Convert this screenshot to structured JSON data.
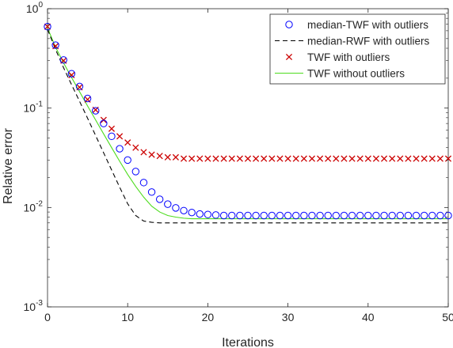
{
  "chart_data": {
    "type": "line",
    "xlabel": "Iterations",
    "ylabel": "Relative error",
    "xlim": [
      0,
      50
    ],
    "ylim": [
      0.001,
      1
    ],
    "yscale": "log",
    "grid": false,
    "legend_position": "top-right",
    "x_ticks": [
      "0",
      "10",
      "20",
      "30",
      "40",
      "50"
    ],
    "y_ticks": [
      {
        "base": "10",
        "exp": "0"
      },
      {
        "base": "10",
        "exp": "-1"
      },
      {
        "base": "10",
        "exp": "-2"
      },
      {
        "base": "10",
        "exp": "-3"
      }
    ],
    "series": [
      {
        "name": "median-TWF with outliers",
        "style": "circle",
        "color": "#0000ff",
        "x": [
          0,
          1,
          2,
          3,
          4,
          5,
          6,
          7,
          8,
          9,
          10,
          11,
          12,
          13,
          14,
          15,
          16,
          17,
          18,
          19,
          20,
          21,
          22,
          23,
          24,
          25,
          26,
          27,
          28,
          29,
          30,
          31,
          32,
          33,
          34,
          35,
          36,
          37,
          38,
          39,
          40,
          41,
          42,
          43,
          44,
          45,
          46,
          47,
          48,
          49,
          50
        ],
        "y": [
          0.66,
          0.43,
          0.305,
          0.222,
          0.165,
          0.125,
          0.094,
          0.07,
          0.052,
          0.039,
          0.03,
          0.023,
          0.0178,
          0.0143,
          0.0121,
          0.0108,
          0.0099,
          0.0093,
          0.0089,
          0.0086,
          0.0085,
          0.0084,
          0.0083,
          0.0083,
          0.0083,
          0.0083,
          0.0083,
          0.0083,
          0.0083,
          0.0083,
          0.0083,
          0.0083,
          0.0083,
          0.0083,
          0.0083,
          0.0083,
          0.0083,
          0.0083,
          0.0083,
          0.0083,
          0.0083,
          0.0083,
          0.0083,
          0.0083,
          0.0083,
          0.0083,
          0.0083,
          0.0083,
          0.0083,
          0.0083,
          0.0083
        ]
      },
      {
        "name": "median-RWF with outliers",
        "style": "dashed",
        "color": "#000000",
        "x": [
          0,
          1,
          2,
          3,
          4,
          5,
          6,
          7,
          8,
          9,
          10,
          11,
          12,
          13,
          14,
          15,
          16,
          17,
          18,
          19,
          20,
          25,
          30,
          35,
          40,
          45,
          50
        ],
        "y": [
          0.62,
          0.39,
          0.255,
          0.172,
          0.117,
          0.079,
          0.053,
          0.0355,
          0.0238,
          0.016,
          0.0109,
          0.0083,
          0.0073,
          0.0071,
          0.007,
          0.007,
          0.007,
          0.007,
          0.007,
          0.007,
          0.007,
          0.007,
          0.007,
          0.007,
          0.007,
          0.007,
          0.007
        ]
      },
      {
        "name": "TWF with outliers",
        "style": "cross",
        "color": "#cc0000",
        "x": [
          0,
          1,
          2,
          3,
          4,
          5,
          6,
          7,
          8,
          9,
          10,
          11,
          12,
          13,
          14,
          15,
          16,
          17,
          18,
          19,
          20,
          21,
          22,
          23,
          24,
          25,
          26,
          27,
          28,
          29,
          30,
          31,
          32,
          33,
          34,
          35,
          36,
          37,
          38,
          39,
          40,
          41,
          42,
          43,
          44,
          45,
          46,
          47,
          48,
          49,
          50
        ],
        "y": [
          0.66,
          0.42,
          0.3,
          0.215,
          0.162,
          0.122,
          0.096,
          0.076,
          0.062,
          0.052,
          0.045,
          0.04,
          0.036,
          0.034,
          0.033,
          0.032,
          0.032,
          0.031,
          0.031,
          0.031,
          0.031,
          0.031,
          0.031,
          0.031,
          0.031,
          0.031,
          0.031,
          0.031,
          0.031,
          0.031,
          0.031,
          0.031,
          0.031,
          0.031,
          0.031,
          0.031,
          0.031,
          0.031,
          0.031,
          0.031,
          0.031,
          0.031,
          0.031,
          0.031,
          0.031,
          0.031,
          0.031,
          0.031,
          0.031,
          0.031,
          0.031
        ]
      },
      {
        "name": "TWF without outliers",
        "style": "solid",
        "color": "#4ddc1e",
        "x": [
          0,
          1,
          2,
          3,
          4,
          5,
          6,
          7,
          8,
          9,
          10,
          11,
          12,
          13,
          14,
          15,
          16,
          17,
          18,
          19,
          20,
          22,
          25,
          30,
          35,
          40,
          45,
          50
        ],
        "y": [
          0.64,
          0.41,
          0.285,
          0.203,
          0.146,
          0.105,
          0.076,
          0.055,
          0.04,
          0.0292,
          0.0215,
          0.0163,
          0.0127,
          0.0103,
          0.009,
          0.0083,
          0.008,
          0.0078,
          0.0077,
          0.0077,
          0.0077,
          0.0077,
          0.0077,
          0.0077,
          0.0077,
          0.0077,
          0.0077,
          0.0077
        ]
      }
    ]
  }
}
